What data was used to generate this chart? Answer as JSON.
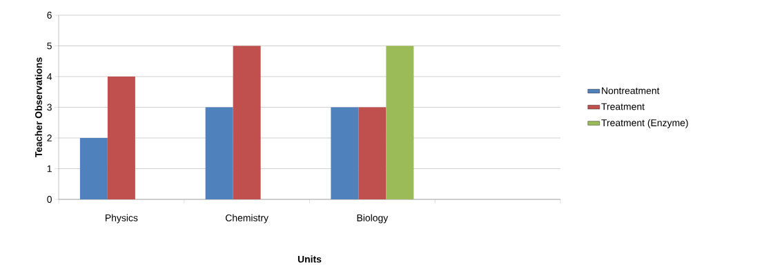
{
  "chart_data": {
    "type": "bar",
    "xlabel": "Units",
    "ylabel": "Teacher Observations",
    "categories": [
      "Physics",
      "Chemistry",
      "Biology",
      null
    ],
    "series": [
      {
        "name": "Nontreatment",
        "color": "#4f81bd",
        "values": [
          2,
          3,
          3,
          null
        ]
      },
      {
        "name": "Treatment",
        "color": "#c0504d",
        "values": [
          4,
          5,
          3,
          null
        ]
      },
      {
        "name": "Treatment (Enzyme)",
        "color": "#9bbb59",
        "values": [
          null,
          null,
          5,
          null
        ]
      }
    ],
    "ylim": [
      0,
      6
    ],
    "yticks": [
      0,
      1,
      2,
      3,
      4,
      5,
      6
    ],
    "grid": "y",
    "legend": "right"
  }
}
